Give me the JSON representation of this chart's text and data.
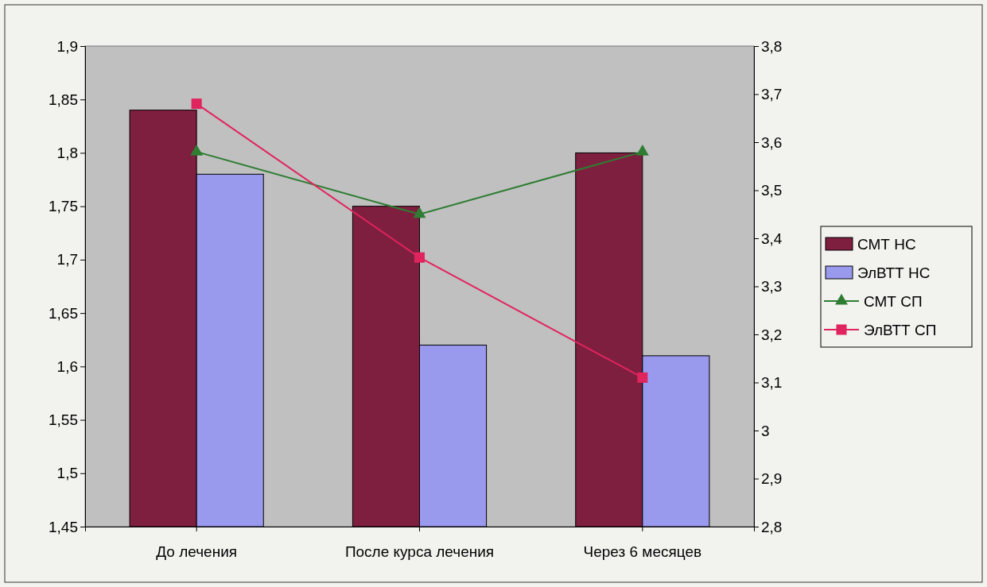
{
  "chart_data": {
    "type": "bar",
    "categories": [
      "До лечения",
      "После курса лечения",
      "Через 6 месяцев"
    ],
    "series": [
      {
        "name": "СМТ НС",
        "color": "#7f1f3f",
        "values": [
          1.84,
          1.75,
          1.8
        ]
      },
      {
        "name": "ЭлВТТ НС",
        "color": "#9999ee",
        "values": [
          1.78,
          1.62,
          1.61
        ]
      },
      {
        "name": "СМТ СП",
        "type": "line",
        "axis": "y2",
        "marker": "triangle",
        "color": "#2e7d32",
        "values": [
          3.58,
          3.45,
          3.58
        ]
      },
      {
        "name": "ЭлВТТ СП",
        "type": "line",
        "axis": "y2",
        "marker": "square",
        "color": "#e0245e",
        "values": [
          3.68,
          3.36,
          3.11
        ]
      }
    ],
    "ylim": [
      1.45,
      1.9
    ],
    "yticks": [
      {
        "value": 1.45,
        "label": "1,45"
      },
      {
        "value": 1.5,
        "label": "1,5"
      },
      {
        "value": 1.55,
        "label": "1,55"
      },
      {
        "value": 1.6,
        "label": "1,6"
      },
      {
        "value": 1.65,
        "label": "1,65"
      },
      {
        "value": 1.7,
        "label": "1,7"
      },
      {
        "value": 1.75,
        "label": "1,75"
      },
      {
        "value": 1.8,
        "label": "1,8"
      },
      {
        "value": 1.85,
        "label": "1,85"
      },
      {
        "value": 1.9,
        "label": "1,9"
      }
    ],
    "y2lim": [
      2.8,
      3.8
    ],
    "y2ticks": [
      {
        "value": 2.8,
        "label": "2,8"
      },
      {
        "value": 2.9,
        "label": "2,9"
      },
      3,
      {
        "value": 3.1,
        "label": "3,1"
      },
      {
        "value": 3.2,
        "label": "3,2"
      },
      {
        "value": 3.3,
        "label": "3,3"
      },
      {
        "value": 3.4,
        "label": "3,4"
      },
      {
        "value": 3.5,
        "label": "3,5"
      },
      {
        "value": 3.6,
        "label": "3,6"
      },
      {
        "value": 3.7,
        "label": "3,7"
      },
      {
        "value": 3.8,
        "label": "3,8"
      }
    ],
    "legend": "right",
    "line_style": "solid"
  }
}
